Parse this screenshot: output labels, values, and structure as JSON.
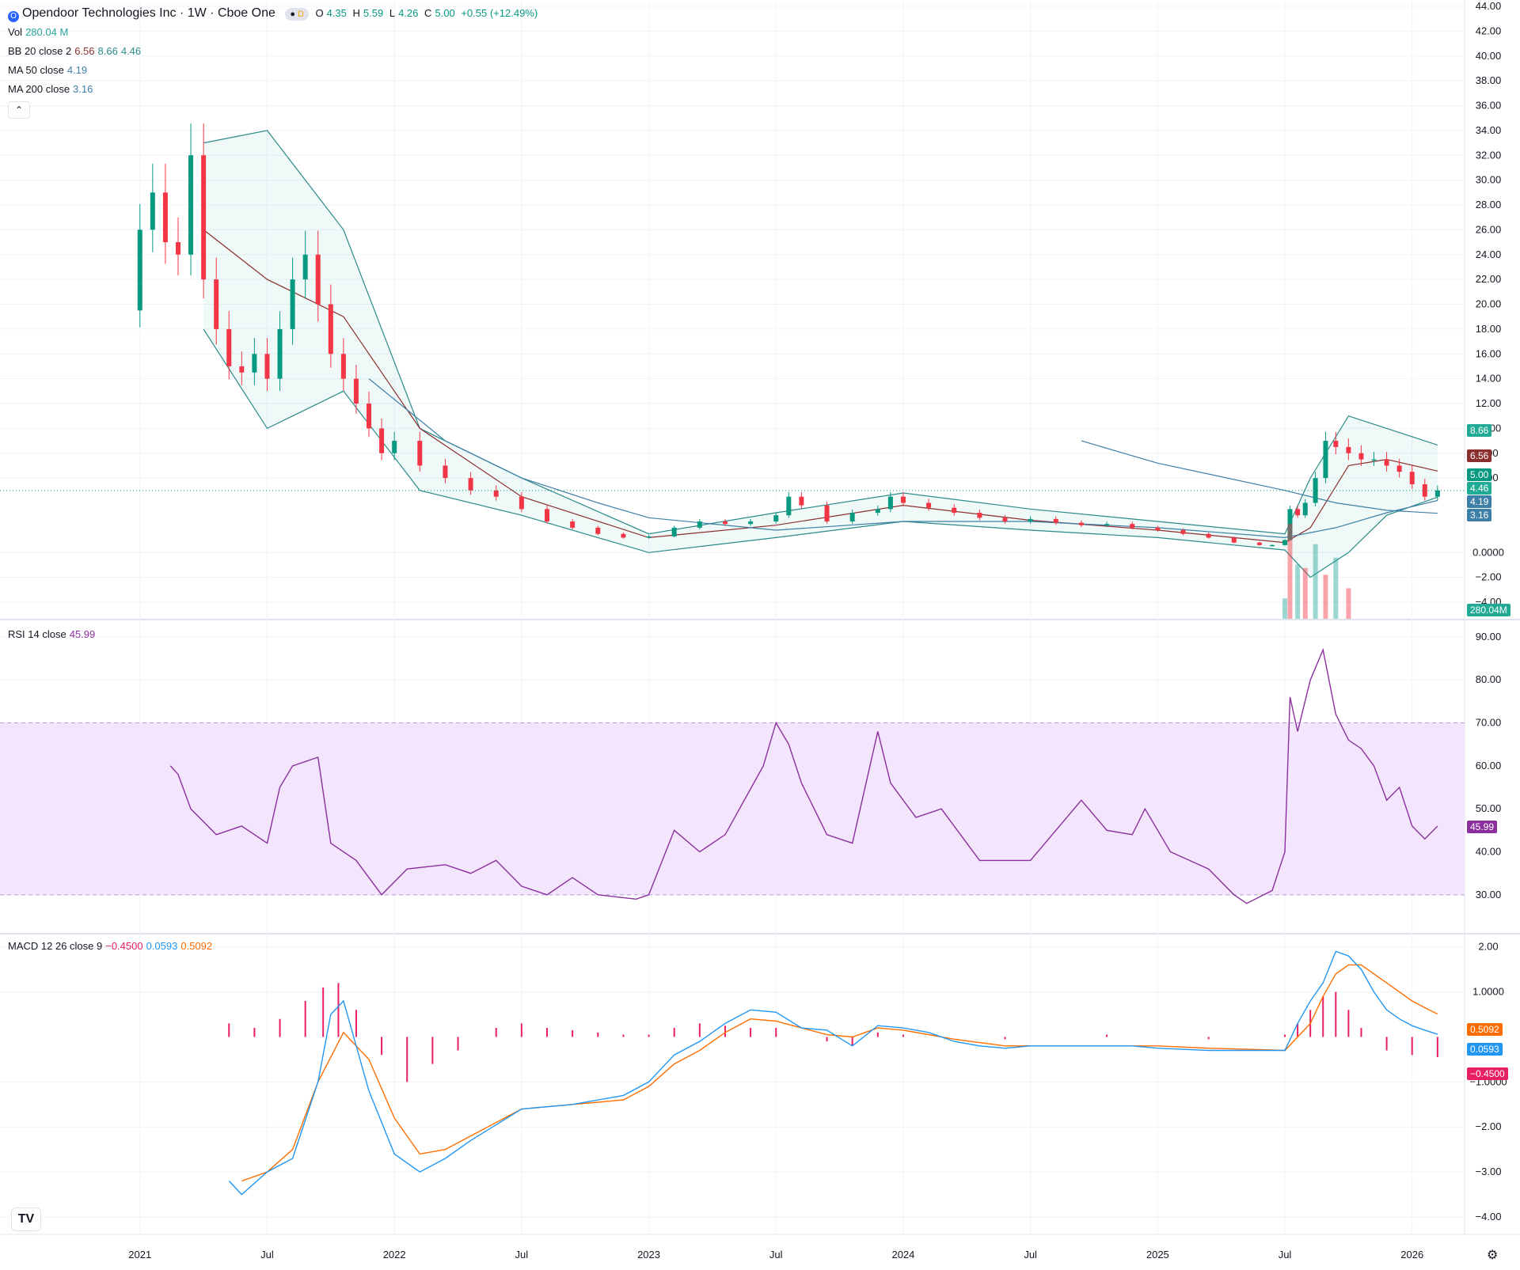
{
  "header": {
    "symbol_icon": "O",
    "title": "Opendoor Technologies Inc · 1W · Cboe One",
    "delayed_badge": "D",
    "ohlc": {
      "o_label": "O",
      "o": "4.35",
      "h_label": "H",
      "h": "5.59",
      "l_label": "L",
      "l": "4.26",
      "c_label": "C",
      "c": "5.00",
      "change": "+0.55 (+12.49%)"
    }
  },
  "legends": {
    "vol": {
      "label": "Vol",
      "value": "280.04 M"
    },
    "bb": {
      "label": "BB 20 close 2",
      "basis": "6.56",
      "upper": "8.66",
      "lower": "4.46"
    },
    "ma50": {
      "label": "MA 50 close",
      "value": "4.19"
    },
    "ma200": {
      "label": "MA 200 close",
      "value": "3.16"
    },
    "rsi": {
      "label": "RSI 14 close",
      "value": "45.99"
    },
    "macd": {
      "label": "MACD 12 26 close 9",
      "hist": "−0.4500",
      "macd": "0.0593",
      "signal": "0.5092"
    }
  },
  "badges": {
    "bb_upper": "8.66",
    "bb_basis": "6.56",
    "close": "5.00",
    "bb_lower": "4.46",
    "ma50": "4.19",
    "ma200": "3.16",
    "vol": "280.04M",
    "rsi": "45.99",
    "signal": "0.5092",
    "macd": "0.0593",
    "hist": "−0.4500"
  },
  "colors": {
    "up": "#089981",
    "down": "#f23645",
    "bb": "#2b8a8a",
    "bb_basis": "#8b2f2f",
    "ma": "#3d7fa6",
    "rsi": "#8b2f9e",
    "rsi_band": "#f3e5fb",
    "macd": "#2196f3",
    "signal": "#ff6d00",
    "hist": "#e91e63"
  },
  "icons": {
    "collapse": "chevron-up-icon",
    "brand": "tradingview-logo-icon",
    "settings": "gear-icon"
  },
  "chart_data": [
    {
      "type": "candlestick",
      "title": "Opendoor Technologies Inc · 1W · Cboe One",
      "ylim": [
        -4,
        44
      ],
      "y_ticks": [
        "44.00",
        "42.00",
        "40.00",
        "38.00",
        "36.00",
        "34.00",
        "32.00",
        "30.00",
        "28.00",
        "26.00",
        "24.00",
        "22.00",
        "20.00",
        "18.00",
        "16.00",
        "14.00",
        "12.00",
        "10.00",
        "8.00",
        "6.00",
        "0.0000",
        "−2.00",
        "−4.00"
      ],
      "x_ticks": [
        "2021",
        "Jul",
        "2022",
        "Jul",
        "2023",
        "Jul",
        "2024",
        "Jul",
        "2025",
        "Jul",
        "2026"
      ],
      "close_series": {
        "name": "Close",
        "t": [
          2020.95,
          2021.0,
          2021.05,
          2021.1,
          2021.15,
          2021.2,
          2021.25,
          2021.3,
          2021.35,
          2021.4,
          2021.45,
          2021.5,
          2021.55,
          2021.6,
          2021.65,
          2021.7,
          2021.75,
          2021.8,
          2021.85,
          2021.9,
          2021.95,
          2022.0,
          2022.1,
          2022.2,
          2022.3,
          2022.4,
          2022.5,
          2022.6,
          2022.7,
          2022.8,
          2022.9,
          2023.0,
          2023.1,
          2023.2,
          2023.3,
          2023.4,
          2023.5,
          2023.55,
          2023.6,
          2023.7,
          2023.8,
          2023.9,
          2023.95,
          2024.0,
          2024.1,
          2024.2,
          2024.3,
          2024.4,
          2024.5,
          2024.6,
          2024.7,
          2024.8,
          2024.9,
          2025.0,
          2025.1,
          2025.2,
          2025.3,
          2025.4,
          2025.45,
          2025.5,
          2025.52,
          2025.55,
          2025.58,
          2025.62,
          2025.66,
          2025.7,
          2025.75,
          2025.8,
          2025.85,
          2025.9,
          2025.95,
          2026.0,
          2026.05,
          2026.1
        ],
        "values": [
          19.5,
          26,
          29,
          25,
          24,
          32,
          22,
          18,
          15,
          14.5,
          16,
          14,
          18,
          22,
          24,
          20,
          16,
          14,
          12,
          10,
          8,
          9,
          7,
          6,
          5,
          4.5,
          3.5,
          2.5,
          2,
          1.5,
          1.2,
          1.3,
          2,
          2.5,
          2.3,
          2.5,
          3,
          4.5,
          3.8,
          2.5,
          3.2,
          3.5,
          4.5,
          4,
          3.6,
          3.2,
          2.8,
          2.5,
          2.7,
          2.4,
          2.2,
          2.3,
          2,
          1.8,
          1.5,
          1.2,
          0.8,
          0.6,
          0.6,
          1,
          3.5,
          3,
          4,
          6,
          9,
          8.5,
          8,
          7.5,
          7.5,
          7,
          6.5,
          5.5,
          4.5,
          5
        ]
      },
      "bb_upper": {
        "t": [
          2021.25,
          2021.5,
          2021.8,
          2022.1,
          2022.5,
          2023.0,
          2023.5,
          2024.0,
          2024.5,
          2025.0,
          2025.5,
          2025.6,
          2025.75,
          2025.9,
          2026.1
        ],
        "values": [
          33,
          34,
          26,
          10,
          6,
          1.5,
          3.2,
          4.8,
          3.5,
          2.5,
          1.5,
          6,
          11,
          10,
          8.66
        ]
      },
      "bb_basis": {
        "t": [
          2021.25,
          2021.5,
          2021.8,
          2022.1,
          2022.5,
          2023.0,
          2023.5,
          2024.0,
          2024.5,
          2025.0,
          2025.5,
          2025.6,
          2025.75,
          2025.9,
          2026.1
        ],
        "values": [
          26,
          22,
          19,
          10,
          4.5,
          1.2,
          2.2,
          3.8,
          2.6,
          1.8,
          0.8,
          2,
          7,
          7.5,
          6.56
        ]
      },
      "bb_lower": {
        "t": [
          2021.25,
          2021.5,
          2021.8,
          2022.1,
          2022.5,
          2023.0,
          2023.5,
          2024.0,
          2024.5,
          2025.0,
          2025.5,
          2025.6,
          2025.75,
          2025.9,
          2026.1
        ],
        "values": [
          18,
          10,
          13,
          5,
          3,
          0,
          1.2,
          2.5,
          1.8,
          1.2,
          0.2,
          -2,
          0,
          3,
          4.46
        ]
      },
      "ma50": {
        "t": [
          2021.9,
          2022.2,
          2022.5,
          2022.8,
          2023.0,
          2023.5,
          2024.0,
          2024.5,
          2025.0,
          2025.5,
          2025.7,
          2025.9,
          2026.1
        ],
        "values": [
          14,
          9,
          6,
          4,
          2.8,
          1.8,
          2.5,
          2.5,
          2,
          1.2,
          2,
          3.2,
          4.19
        ]
      },
      "ma200": {
        "t": [
          2024.7,
          2025.0,
          2025.5,
          2025.7,
          2025.9,
          2026.1
        ],
        "values": [
          9,
          7.2,
          5,
          4,
          3.4,
          3.16
        ]
      },
      "volume_series": {
        "name": "Vol",
        "t": [
          2025.5,
          2025.52,
          2025.55,
          2025.58,
          2025.62,
          2025.66,
          2025.7,
          2025.75
        ],
        "values_m": [
          600,
          2800,
          1600,
          1500,
          2200,
          1300,
          1800,
          900
        ],
        "last": "280.04M"
      }
    },
    {
      "type": "line",
      "ylim": [
        25,
        92
      ],
      "y_ticks": [
        "90.00",
        "80.00",
        "70.00",
        "60.00",
        "50.00",
        "40.00",
        "30.00"
      ],
      "band": [
        30,
        70
      ],
      "series": [
        {
          "name": "RSI",
          "t": [
            2021.12,
            2021.15,
            2021.2,
            2021.3,
            2021.4,
            2021.5,
            2021.55,
            2021.6,
            2021.7,
            2021.75,
            2021.85,
            2021.95,
            2022.05,
            2022.2,
            2022.3,
            2022.4,
            2022.5,
            2022.6,
            2022.7,
            2022.8,
            2022.95,
            2023.0,
            2023.1,
            2023.2,
            2023.3,
            2023.45,
            2023.5,
            2023.55,
            2023.6,
            2023.7,
            2023.8,
            2023.9,
            2023.95,
            2024.05,
            2024.15,
            2024.3,
            2024.5,
            2024.6,
            2024.7,
            2024.8,
            2024.9,
            2024.95,
            2025.05,
            2025.2,
            2025.3,
            2025.35,
            2025.45,
            2025.5,
            2025.52,
            2025.55,
            2025.6,
            2025.65,
            2025.7,
            2025.75,
            2025.8,
            2025.85,
            2025.9,
            2025.95,
            2026.0,
            2026.05,
            2026.1
          ],
          "values": [
            60,
            58,
            50,
            44,
            46,
            42,
            55,
            60,
            62,
            42,
            38,
            30,
            36,
            37,
            35,
            38,
            32,
            30,
            34,
            30,
            29,
            30,
            45,
            40,
            44,
            60,
            70,
            65,
            56,
            44,
            42,
            68,
            56,
            48,
            50,
            38,
            38,
            45,
            52,
            45,
            44,
            50,
            40,
            36,
            30,
            28,
            31,
            40,
            76,
            68,
            80,
            87,
            72,
            66,
            64,
            60,
            52,
            55,
            46,
            43,
            45.99
          ]
        }
      ]
    },
    {
      "type": "line",
      "ylim": [
        -4,
        2.1
      ],
      "y_ticks": [
        "2.00",
        "1.0000",
        "−1.0000",
        "−2.00",
        "−3.00",
        "−4.00"
      ],
      "series": [
        {
          "name": "MACD",
          "t": [
            2021.35,
            2021.4,
            2021.5,
            2021.6,
            2021.7,
            2021.75,
            2021.8,
            2021.9,
            2022.0,
            2022.1,
            2022.2,
            2022.3,
            2022.5,
            2022.7,
            2022.9,
            2023.0,
            2023.1,
            2023.2,
            2023.3,
            2023.4,
            2023.5,
            2023.6,
            2023.7,
            2023.8,
            2023.9,
            2024.0,
            2024.1,
            2024.2,
            2024.3,
            2024.4,
            2024.5,
            2024.7,
            2024.9,
            2025.0,
            2025.2,
            2025.4,
            2025.5,
            2025.55,
            2025.6,
            2025.65,
            2025.7,
            2025.75,
            2025.8,
            2025.85,
            2025.9,
            2025.95,
            2026.0,
            2026.05,
            2026.1
          ],
          "values": [
            -3.2,
            -3.5,
            -3.0,
            -2.7,
            -1.0,
            0.5,
            0.8,
            -1.2,
            -2.6,
            -3.0,
            -2.7,
            -2.3,
            -1.6,
            -1.5,
            -1.3,
            -1.0,
            -0.4,
            -0.1,
            0.3,
            0.6,
            0.55,
            0.2,
            0.15,
            -0.2,
            0.25,
            0.2,
            0.1,
            -0.1,
            -0.2,
            -0.25,
            -0.2,
            -0.2,
            -0.2,
            -0.25,
            -0.3,
            -0.3,
            -0.3,
            0.3,
            0.8,
            1.2,
            1.9,
            1.8,
            1.5,
            1.0,
            0.6,
            0.4,
            0.25,
            0.15,
            0.0593
          ]
        },
        {
          "name": "Signal",
          "t": [
            2021.4,
            2021.5,
            2021.6,
            2021.7,
            2021.8,
            2021.9,
            2022.0,
            2022.1,
            2022.2,
            2022.3,
            2022.5,
            2022.7,
            2022.9,
            2023.0,
            2023.1,
            2023.2,
            2023.3,
            2023.4,
            2023.5,
            2023.6,
            2023.7,
            2023.8,
            2023.9,
            2024.0,
            2024.2,
            2024.4,
            2024.6,
            2024.8,
            2025.0,
            2025.2,
            2025.4,
            2025.5,
            2025.55,
            2025.6,
            2025.65,
            2025.7,
            2025.75,
            2025.8,
            2025.85,
            2025.9,
            2025.95,
            2026.0,
            2026.05,
            2026.1
          ],
          "values": [
            -3.2,
            -3.0,
            -2.5,
            -1.0,
            0.1,
            -0.5,
            -1.8,
            -2.6,
            -2.5,
            -2.2,
            -1.6,
            -1.5,
            -1.4,
            -1.1,
            -0.6,
            -0.3,
            0.1,
            0.4,
            0.35,
            0.2,
            0.05,
            0.0,
            0.2,
            0.15,
            -0.05,
            -0.2,
            -0.2,
            -0.2,
            -0.2,
            -0.25,
            -0.28,
            -0.3,
            0.0,
            0.3,
            0.9,
            1.4,
            1.6,
            1.6,
            1.4,
            1.2,
            1.0,
            0.8,
            0.65,
            0.5092
          ]
        }
      ],
      "histogram": {
        "name": "Histogram",
        "t": [
          2021.35,
          2021.45,
          2021.55,
          2021.65,
          2021.72,
          2021.78,
          2021.85,
          2021.95,
          2022.05,
          2022.15,
          2022.25,
          2022.4,
          2022.5,
          2022.6,
          2022.7,
          2022.8,
          2022.9,
          2023.0,
          2023.1,
          2023.2,
          2023.3,
          2023.4,
          2023.5,
          2023.6,
          2023.7,
          2023.8,
          2023.9,
          2024.0,
          2024.2,
          2024.4,
          2024.6,
          2024.8,
          2025.0,
          2025.2,
          2025.4,
          2025.5,
          2025.55,
          2025.6,
          2025.65,
          2025.7,
          2025.75,
          2025.8,
          2025.9,
          2026.0,
          2026.1
        ],
        "values": [
          0.3,
          0.2,
          0.4,
          0.8,
          1.1,
          1.2,
          0.6,
          -0.4,
          -1.0,
          -0.6,
          -0.3,
          0.2,
          0.3,
          0.2,
          0.15,
          0.1,
          0.05,
          0.05,
          0.2,
          0.3,
          0.25,
          0.2,
          0.2,
          0.0,
          -0.1,
          -0.2,
          0.1,
          0.05,
          0.0,
          -0.05,
          0.0,
          0.05,
          0.0,
          -0.05,
          0.0,
          0.05,
          0.3,
          0.6,
          0.9,
          1.0,
          0.6,
          0.2,
          -0.3,
          -0.4,
          -0.45
        ]
      }
    }
  ]
}
